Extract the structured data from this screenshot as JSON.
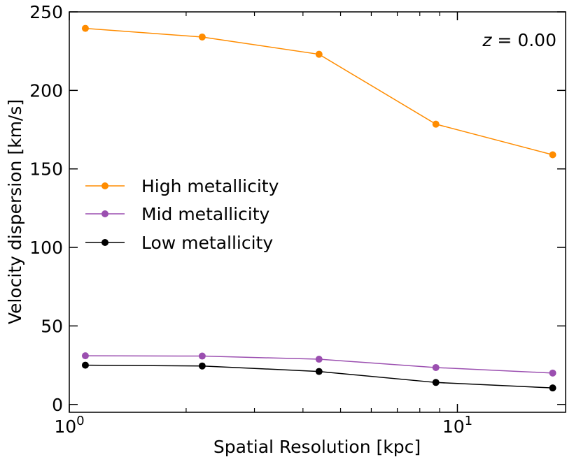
{
  "chart_data": {
    "type": "line",
    "xlabel": "Spatial Resolution [kpc]",
    "ylabel": "Velocity dispersion [km/s]",
    "xscale": "log",
    "xlim": [
      1.0,
      19.0
    ],
    "ylim": [
      -5,
      250
    ],
    "x_tick_labels": [
      {
        "value": 1,
        "base": "10",
        "exp": "0"
      },
      {
        "value": 10,
        "base": "10",
        "exp": "1"
      }
    ],
    "y_ticks": [
      0,
      50,
      100,
      150,
      200,
      250
    ],
    "annotation": {
      "var": "z",
      "text": " = 0.00"
    },
    "legend_position": "center-left",
    "grid": false,
    "x": [
      1.1,
      2.2,
      4.4,
      8.8,
      17.6
    ],
    "series": [
      {
        "name": "High metallicity",
        "color": "#ff8c00",
        "values": [
          239.5,
          234,
          223,
          178.5,
          159
        ]
      },
      {
        "name": "Mid metallicity",
        "color": "#9b4fb0",
        "values": [
          31,
          30.8,
          28.8,
          23.5,
          20
        ]
      },
      {
        "name": "Low metallicity",
        "color": "#000000",
        "values": [
          25,
          24.5,
          21,
          14,
          10.5
        ]
      }
    ]
  }
}
